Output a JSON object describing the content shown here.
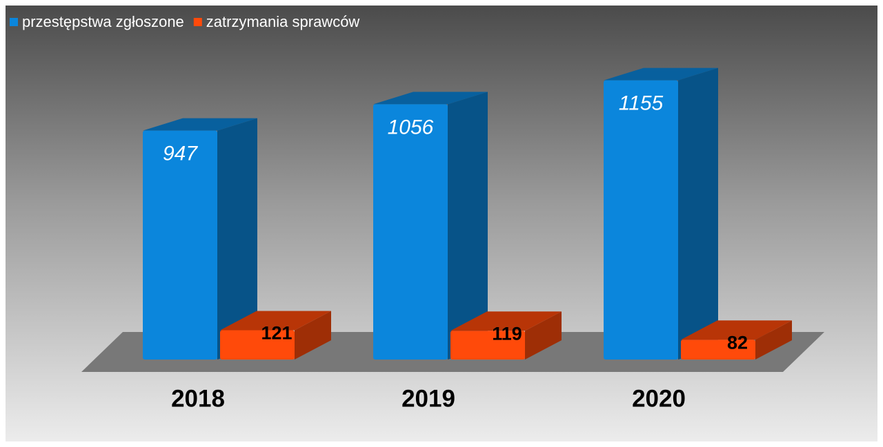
{
  "chart_data": {
    "type": "bar3d",
    "categories": [
      "2018",
      "2019",
      "2020"
    ],
    "series": [
      {
        "name": "przestępstwa zgłoszone",
        "color": "#0b86dc",
        "values": [
          947,
          1056,
          1155
        ]
      },
      {
        "name": "zatrzymania sprawców",
        "color": "#ff4a0a",
        "values": [
          121,
          119,
          82
        ]
      }
    ],
    "legend": "top-left"
  }
}
